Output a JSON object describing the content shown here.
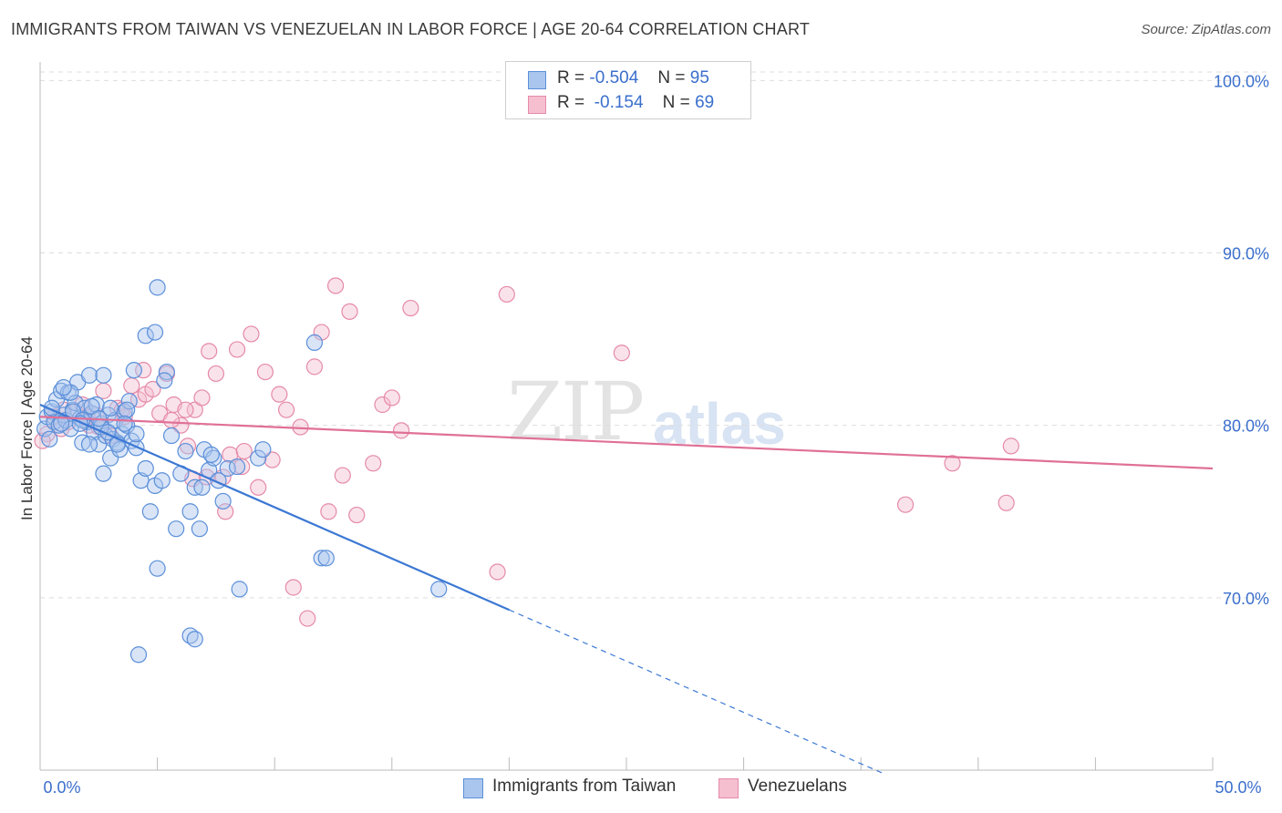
{
  "header": {
    "title": "IMMIGRANTS FROM TAIWAN VS VENEZUELAN IN LABOR FORCE | AGE 20-64 CORRELATION CHART",
    "source": "Source: ZipAtlas.com"
  },
  "watermark": {
    "zip": "ZIP",
    "atlas": "atlas"
  },
  "legend": {
    "rows": [
      {
        "r_label": "R =",
        "r_value": "-0.504",
        "n_label": "N =",
        "n_value": "95"
      },
      {
        "r_label": "R =",
        "r_value": "-0.154",
        "n_label": "N =",
        "n_value": "69"
      }
    ]
  },
  "bottom_legend": {
    "taiwan": "Immigrants from Taiwan",
    "venezuelans": "Venezuelans"
  },
  "colors": {
    "taiwan_fill": "#aac6ee",
    "taiwan_stroke": "#5b8fd9",
    "taiwan_line": "#3b78d4",
    "venez_fill": "#f5bfd0",
    "venez_stroke": "#e58aa9",
    "venez_line": "#e07097",
    "tick_text": "#3b6fcc",
    "grid": "#dddddd"
  },
  "chart_data": {
    "type": "scatter",
    "title": "IMMIGRANTS FROM TAIWAN VS VENEZUELAN IN LABOR FORCE | AGE 20-64 CORRELATION CHART",
    "xlabel": "",
    "ylabel": "In Labor Force | Age 20-64",
    "xlim": [
      0,
      50
    ],
    "ylim": [
      60,
      101.5
    ],
    "x_tick_labels": [
      "0.0%",
      "50.0%"
    ],
    "y_ticks": [
      70,
      80,
      90,
      100
    ],
    "y_tick_labels": [
      "70.0%",
      "80.0%",
      "90.0%",
      "100.0%"
    ],
    "grid": true,
    "series": [
      {
        "name": "Immigrants from Taiwan",
        "r": -0.504,
        "n": 95,
        "trend": {
          "x0": 0,
          "y0": 81.2,
          "x1": 20,
          "y1": 69.3,
          "dashed_to_x": 36
        },
        "points": [
          [
            0.2,
            79.8
          ],
          [
            0.3,
            80.5
          ],
          [
            0.4,
            79.2
          ],
          [
            0.5,
            80.8
          ],
          [
            0.6,
            80.2
          ],
          [
            0.7,
            81.5
          ],
          [
            0.8,
            80.0
          ],
          [
            0.9,
            82.0
          ],
          [
            1.0,
            80.6
          ],
          [
            1.1,
            80.3
          ],
          [
            1.2,
            81.9
          ],
          [
            1.3,
            79.8
          ],
          [
            1.4,
            80.9
          ],
          [
            1.5,
            81.3
          ],
          [
            1.6,
            82.5
          ],
          [
            1.7,
            80.4
          ],
          [
            1.8,
            79.0
          ],
          [
            1.9,
            81.0
          ],
          [
            2.0,
            80.2
          ],
          [
            2.1,
            82.9
          ],
          [
            2.2,
            80.7
          ],
          [
            2.3,
            79.6
          ],
          [
            2.4,
            81.2
          ],
          [
            2.5,
            78.9
          ],
          [
            2.6,
            80.1
          ],
          [
            2.7,
            77.2
          ],
          [
            2.8,
            79.4
          ],
          [
            2.9,
            80.6
          ],
          [
            3.0,
            78.1
          ],
          [
            3.1,
            79.2
          ],
          [
            3.2,
            80.3
          ],
          [
            3.3,
            79.0
          ],
          [
            3.4,
            78.6
          ],
          [
            3.5,
            79.5
          ],
          [
            3.6,
            80.8
          ],
          [
            3.7,
            80.0
          ],
          [
            3.8,
            81.4
          ],
          [
            3.9,
            79.1
          ],
          [
            4.0,
            83.2
          ],
          [
            4.1,
            78.7
          ],
          [
            4.3,
            76.8
          ],
          [
            4.5,
            77.5
          ],
          [
            4.7,
            75.0
          ],
          [
            4.9,
            76.5
          ],
          [
            5.0,
            71.7
          ],
          [
            5.2,
            76.8
          ],
          [
            5.4,
            83.1
          ],
          [
            5.6,
            79.4
          ],
          [
            5.8,
            74.0
          ],
          [
            6.0,
            77.2
          ],
          [
            6.2,
            78.5
          ],
          [
            6.4,
            75.0
          ],
          [
            6.6,
            76.4
          ],
          [
            6.8,
            74.0
          ],
          [
            7.0,
            78.6
          ],
          [
            7.2,
            77.4
          ],
          [
            7.4,
            78.1
          ],
          [
            7.6,
            76.8
          ],
          [
            7.8,
            75.6
          ],
          [
            8.0,
            77.5
          ],
          [
            4.5,
            85.2
          ],
          [
            4.9,
            85.4
          ],
          [
            5.3,
            82.6
          ],
          [
            5.0,
            88.0
          ],
          [
            11.7,
            84.8
          ],
          [
            12.0,
            72.3
          ],
          [
            12.2,
            72.3
          ],
          [
            8.5,
            70.5
          ],
          [
            6.4,
            67.8
          ],
          [
            6.6,
            67.6
          ],
          [
            4.2,
            66.7
          ],
          [
            17.0,
            70.5
          ],
          [
            9.3,
            78.1
          ],
          [
            9.5,
            78.6
          ],
          [
            8.4,
            77.6
          ],
          [
            1.4,
            80.8
          ],
          [
            1.8,
            80.3
          ],
          [
            2.2,
            81.1
          ],
          [
            2.6,
            79.9
          ],
          [
            3.0,
            81.0
          ],
          [
            0.5,
            81.0
          ],
          [
            0.9,
            80.1
          ],
          [
            1.3,
            81.9
          ],
          [
            1.7,
            80.1
          ],
          [
            2.1,
            78.9
          ],
          [
            2.5,
            80.4
          ],
          [
            2.9,
            79.6
          ],
          [
            3.3,
            78.9
          ],
          [
            3.7,
            80.9
          ],
          [
            4.1,
            79.5
          ],
          [
            1.0,
            82.2
          ],
          [
            2.7,
            82.9
          ],
          [
            3.6,
            80.1
          ],
          [
            6.9,
            76.4
          ],
          [
            7.3,
            78.3
          ]
        ]
      },
      {
        "name": "Venezuelans",
        "r": -0.154,
        "n": 69,
        "trend": {
          "x0": 0,
          "y0": 80.5,
          "x1": 50,
          "y1": 77.5
        },
        "points": [
          [
            0.3,
            79.5
          ],
          [
            0.6,
            80.5
          ],
          [
            0.9,
            79.8
          ],
          [
            1.2,
            80.2
          ],
          [
            1.5,
            80.8
          ],
          [
            1.8,
            81.2
          ],
          [
            2.1,
            80.0
          ],
          [
            2.4,
            80.6
          ],
          [
            2.7,
            82.0
          ],
          [
            3.0,
            79.4
          ],
          [
            3.3,
            81.0
          ],
          [
            3.6,
            80.5
          ],
          [
            3.9,
            82.3
          ],
          [
            4.2,
            81.5
          ],
          [
            4.5,
            81.8
          ],
          [
            4.8,
            82.1
          ],
          [
            5.1,
            80.7
          ],
          [
            5.4,
            83.0
          ],
          [
            5.7,
            81.2
          ],
          [
            6.0,
            80.0
          ],
          [
            6.3,
            78.8
          ],
          [
            6.6,
            80.9
          ],
          [
            6.9,
            81.6
          ],
          [
            7.2,
            84.3
          ],
          [
            7.5,
            83.0
          ],
          [
            7.8,
            77.0
          ],
          [
            8.1,
            78.3
          ],
          [
            8.4,
            84.4
          ],
          [
            8.7,
            78.5
          ],
          [
            9.0,
            85.3
          ],
          [
            9.3,
            76.4
          ],
          [
            9.6,
            83.1
          ],
          [
            9.9,
            78.0
          ],
          [
            10.2,
            81.8
          ],
          [
            10.5,
            80.9
          ],
          [
            10.8,
            70.6
          ],
          [
            11.1,
            79.9
          ],
          [
            11.4,
            68.8
          ],
          [
            11.7,
            83.4
          ],
          [
            12.0,
            85.4
          ],
          [
            12.3,
            75.0
          ],
          [
            12.6,
            88.1
          ],
          [
            12.9,
            77.1
          ],
          [
            13.2,
            86.6
          ],
          [
            13.5,
            74.8
          ],
          [
            14.2,
            77.8
          ],
          [
            14.6,
            81.2
          ],
          [
            15.0,
            81.6
          ],
          [
            15.4,
            79.7
          ],
          [
            15.8,
            86.8
          ],
          [
            19.5,
            71.5
          ],
          [
            19.9,
            87.6
          ],
          [
            24.8,
            84.2
          ],
          [
            36.9,
            75.4
          ],
          [
            38.9,
            77.8
          ],
          [
            41.2,
            75.5
          ],
          [
            41.4,
            78.8
          ],
          [
            6.2,
            80.9
          ],
          [
            7.1,
            77.0
          ],
          [
            8.6,
            77.6
          ],
          [
            4.4,
            83.2
          ],
          [
            5.6,
            80.3
          ],
          [
            2.5,
            79.9
          ],
          [
            3.5,
            80.9
          ],
          [
            1.0,
            80.9
          ],
          [
            6.5,
            76.9
          ],
          [
            0.1,
            79.1
          ],
          [
            2.0,
            80.5
          ],
          [
            7.9,
            75.0
          ]
        ]
      }
    ]
  }
}
